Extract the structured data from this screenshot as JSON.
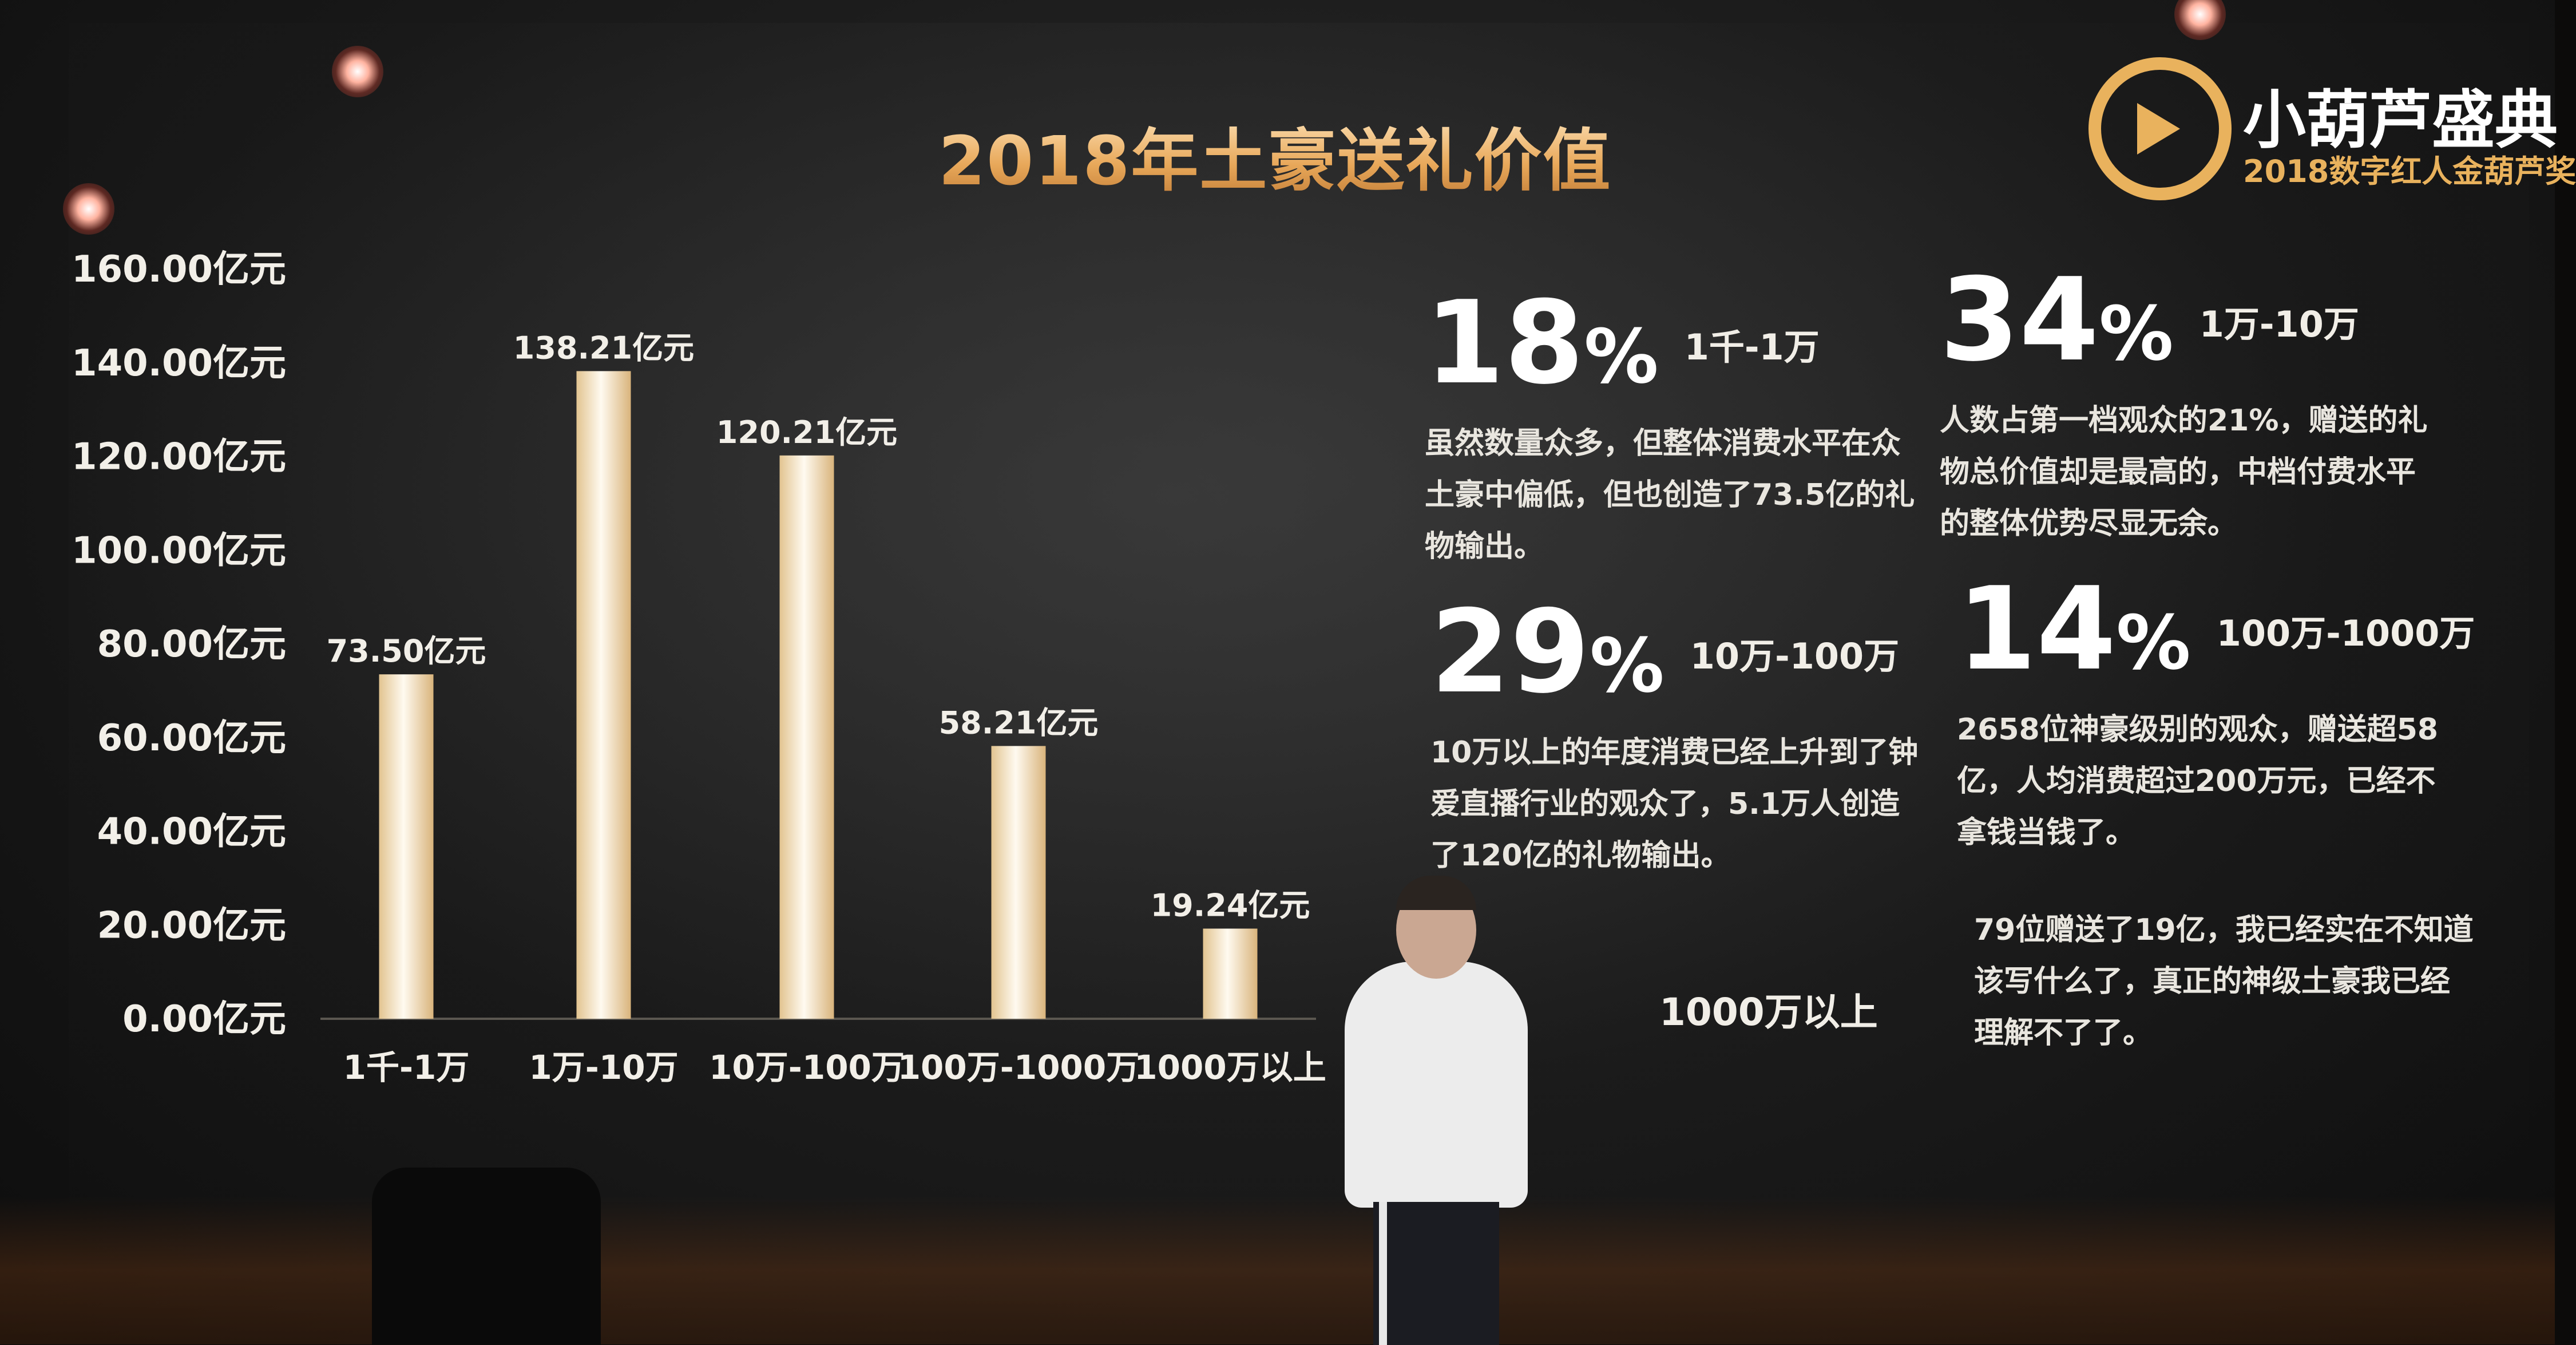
{
  "title": "2018年土豪送礼价值",
  "chart_data": {
    "type": "bar",
    "categories": [
      "1千-1万",
      "1万-10万",
      "10万-100万",
      "100万-1000万",
      "1000万以上"
    ],
    "values": [
      73.5,
      138.21,
      120.21,
      58.21,
      19.24
    ],
    "value_labels": [
      "73.50亿元",
      "138.21亿元",
      "120.21亿元",
      "58.21亿元",
      "19.24亿元"
    ],
    "y_ticks": [
      "0.00亿元",
      "20.00亿元",
      "40.00亿元",
      "60.00亿元",
      "80.00亿元",
      "100.00亿元",
      "120.00亿元",
      "140.00亿元",
      "160.00亿元"
    ],
    "ylim": [
      0,
      160
    ],
    "bar_color": "#fff3d6",
    "grid": false
  },
  "stats": [
    {
      "pct": "18",
      "unit": "%",
      "range": "1千-1万",
      "desc": "虽然数量众多，但整体消费水平在众土豪中偏低，但也创造了73.5亿的礼物输出。"
    },
    {
      "pct": "34",
      "unit": "%",
      "range": "1万-10万",
      "desc": "人数占第一档观众的21%，赠送的礼物总价值却是最高的，中档付费水平的整体优势尽显无余。"
    },
    {
      "pct": "29",
      "unit": "%",
      "range": "10万-100万",
      "desc": "10万以上的年度消费已经上升到了钟爱直播行业的观众了，5.1万人创造了120亿的礼物输出。"
    },
    {
      "pct": "14",
      "unit": "%",
      "range": "100万-1000万",
      "desc": "2658位神豪级别的观众，赠送超58亿，人均消费超过200万元，已经不拿钱当钱了。"
    }
  ],
  "stat5": {
    "range": "1000万以上",
    "desc": "79位赠送了19亿，我已经实在不知道该写什么了，真正的神级土豪我已经理解不了了。"
  },
  "logo": {
    "name": "小葫芦盛典",
    "subtitle": "2018数字红人金葫芦奖"
  },
  "colors": {
    "accent": "#e9b25d",
    "text": "#f1eee7"
  }
}
